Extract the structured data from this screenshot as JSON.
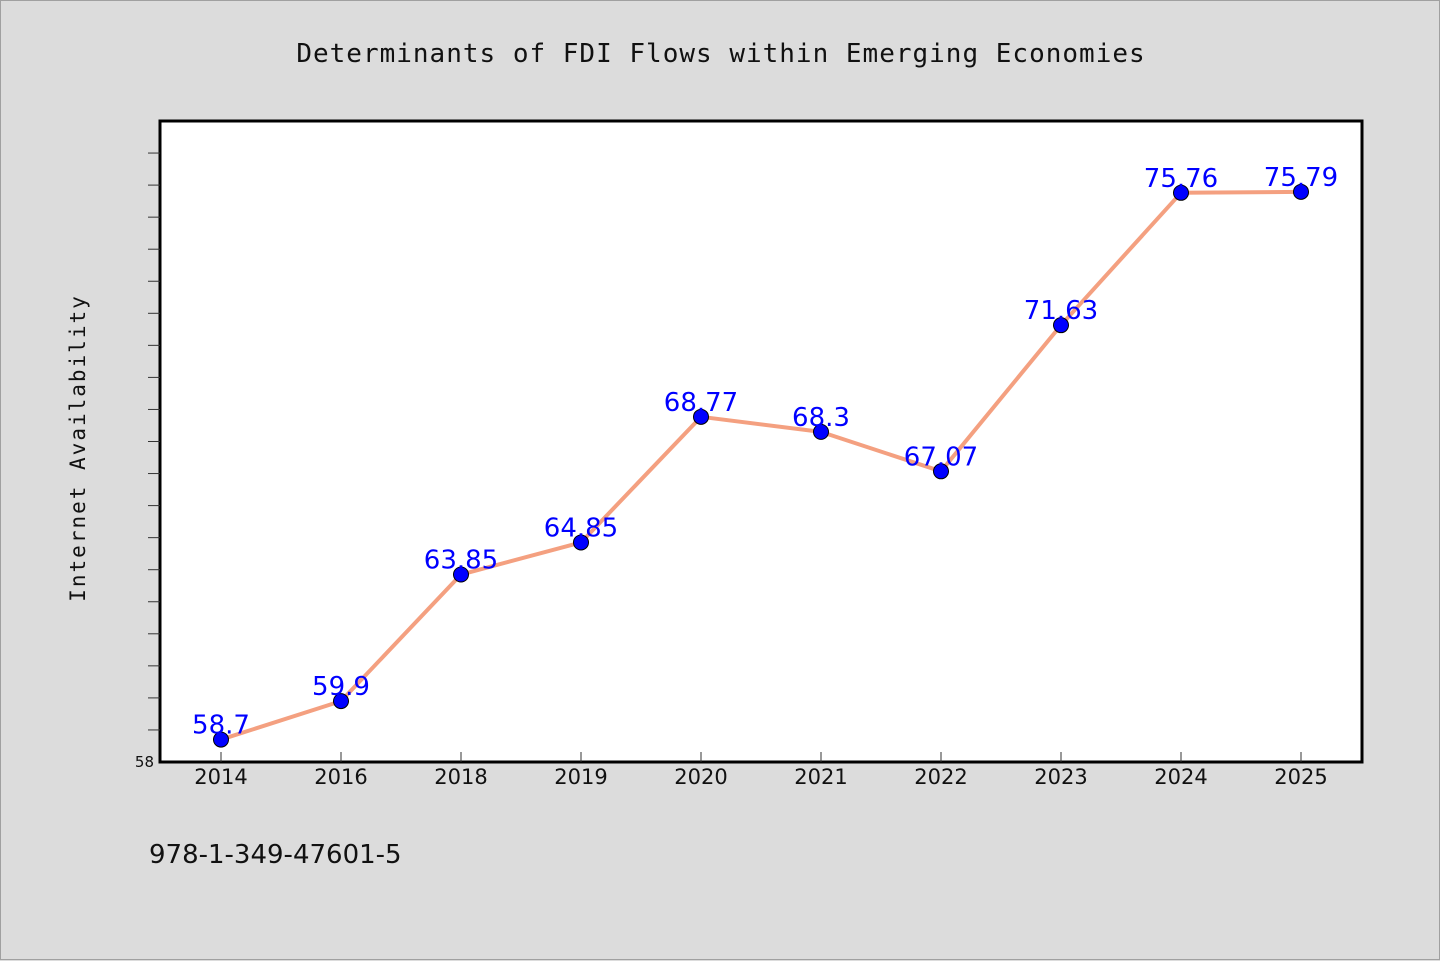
{
  "chart_data": {
    "type": "line",
    "title": "Determinants of FDI Flows within Emerging Economies",
    "xlabel": "",
    "ylabel": "Internet Availability",
    "categories": [
      "2014",
      "2016",
      "2018",
      "2019",
      "2020",
      "2021",
      "2022",
      "2023",
      "2024",
      "2025"
    ],
    "series": [
      {
        "values": [
          58.7,
          59.9,
          63.85,
          64.85,
          68.77,
          68.3,
          67.07,
          71.63,
          75.76,
          75.79
        ],
        "labels": [
          "58.7",
          "59.9",
          "63.85",
          "64.85",
          "68.77",
          "68.3",
          "67.07",
          "71.63",
          "75.76",
          "75.79"
        ]
      }
    ],
    "ylim": [
      58,
      78
    ],
    "yticks_labeled": [
      "58"
    ],
    "grid": false,
    "line_color": "#f4a080",
    "marker_color": "#0000ff"
  },
  "footer": {
    "isbn": "978-1-349-47601-5"
  }
}
